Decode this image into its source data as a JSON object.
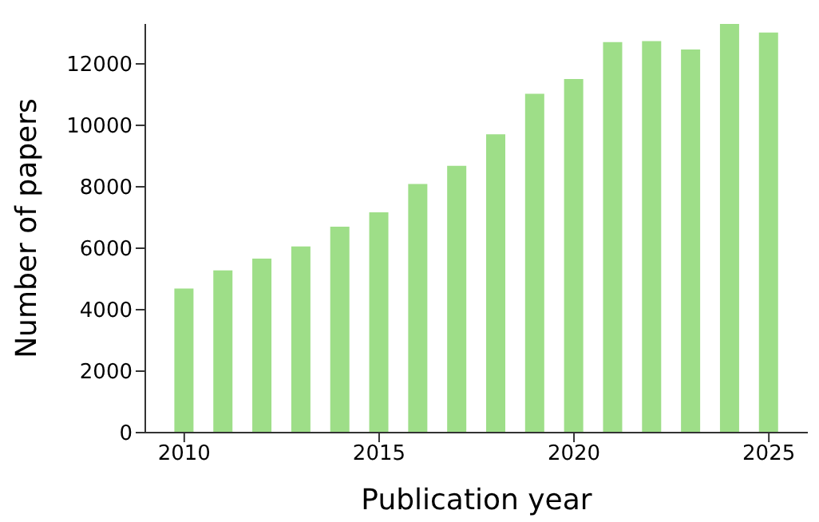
{
  "chart_data": {
    "type": "bar",
    "xlabel": "Publication year",
    "ylabel": "Number of papers",
    "x": [
      2010,
      2011,
      2012,
      2013,
      2014,
      2015,
      2016,
      2017,
      2018,
      2019,
      2020,
      2021,
      2022,
      2023,
      2024,
      2025
    ],
    "values": [
      4690,
      5280,
      5660,
      6060,
      6700,
      7170,
      8090,
      8680,
      9710,
      11030,
      11510,
      12710,
      12740,
      12470,
      13300,
      13020
    ],
    "color": "#9ede88",
    "xlim": [
      2009,
      2026
    ],
    "xticks": [
      2010,
      2015,
      2020,
      2025
    ],
    "ylim": [
      0,
      13300
    ],
    "yticks": [
      0,
      2000,
      4000,
      6000,
      8000,
      10000,
      12000
    ],
    "grid": false
  }
}
